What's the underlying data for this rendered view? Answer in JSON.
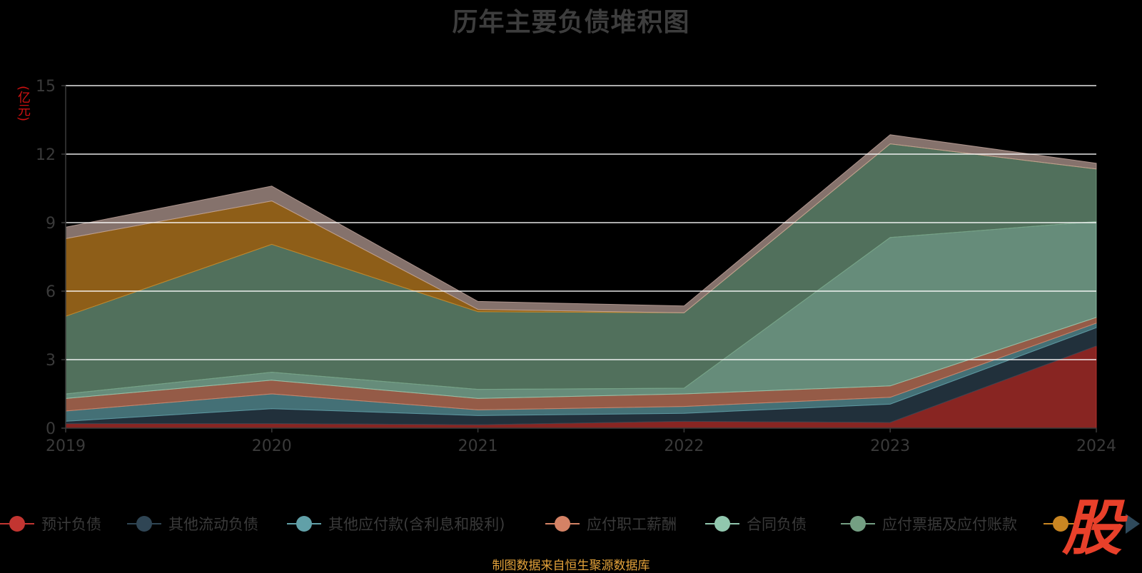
{
  "chart_data": {
    "type": "area",
    "stacked": true,
    "title": "历年主要负债堆积图",
    "ylabel": "(亿元)",
    "categories": [
      "2019",
      "2020",
      "2021",
      "2022",
      "2023",
      "2024"
    ],
    "ylim": [
      0,
      15
    ],
    "yticks": [
      0,
      3,
      6,
      9,
      12,
      15
    ],
    "grid": true,
    "legend_position": "bottom",
    "series": [
      {
        "name": "预计负债",
        "color": "#c23531",
        "values": [
          0.2,
          0.2,
          0.15,
          0.3,
          0.25,
          3.6
        ]
      },
      {
        "name": "其他流动负债",
        "color": "#2f4554",
        "values": [
          0.1,
          0.65,
          0.4,
          0.35,
          0.8,
          0.8
        ]
      },
      {
        "name": "其他应付款(含利息和股利)",
        "color": "#61a0a8",
        "values": [
          0.45,
          0.65,
          0.25,
          0.3,
          0.3,
          0.2
        ]
      },
      {
        "name": "应付职工薪酬",
        "color": "#d48265",
        "values": [
          0.55,
          0.6,
          0.5,
          0.55,
          0.5,
          0.25
        ]
      },
      {
        "name": "合同负债",
        "color": "#91c7ae",
        "values": [
          0.2,
          0.35,
          0.4,
          0.25,
          6.5,
          4.2
        ]
      },
      {
        "name": "应付票据及应付账款",
        "color": "#749f83",
        "values": [
          3.4,
          5.6,
          3.4,
          3.3,
          4.1,
          2.3
        ]
      },
      {
        "name": "",
        "color": "#ca8622",
        "values": [
          3.4,
          1.9,
          0.1,
          0.0,
          0.0,
          0.0
        ]
      },
      {
        "name": "",
        "color": "#bda29a",
        "values": [
          0.5,
          0.65,
          0.35,
          0.3,
          0.4,
          0.25
        ]
      }
    ]
  },
  "source_note": "制图数据来自恒生聚源数据库",
  "watermark_text": "股"
}
